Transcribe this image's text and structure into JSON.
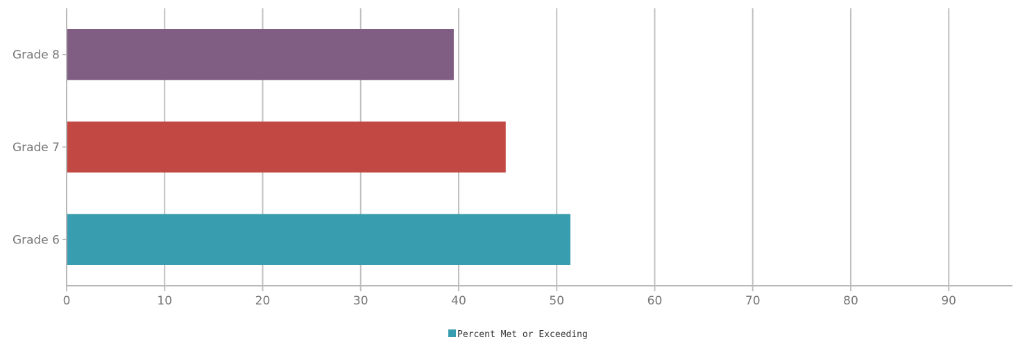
{
  "chart_data": {
    "type": "bar",
    "orientation": "horizontal",
    "categories": [
      "Grade 8",
      "Grade 7",
      "Grade 6"
    ],
    "series": [
      {
        "name": "Percent Met or Exceeding",
        "values": [
          39.5,
          44.8,
          51.4
        ],
        "colors": [
          "#805E84",
          "#C24844",
          "#389DAE"
        ]
      }
    ],
    "x_ticks": [
      0,
      10,
      20,
      30,
      40,
      50,
      60,
      70,
      80,
      90
    ],
    "xlim": [
      0,
      96.5
    ],
    "grid": true,
    "legend_position": "bottom-center",
    "legend_color": "#389DAE",
    "title": "",
    "xlabel": "",
    "ylabel": ""
  }
}
